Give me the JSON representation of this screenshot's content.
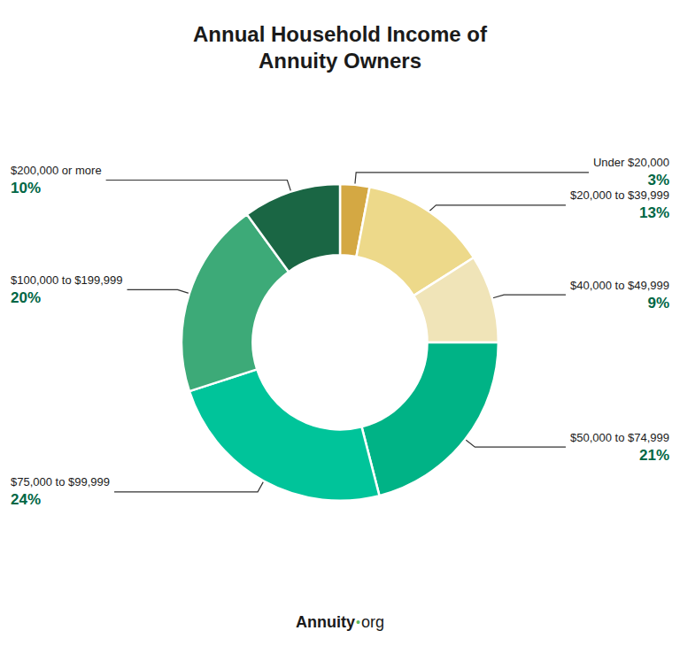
{
  "chart_data": {
    "type": "pie",
    "title": "Annual Household Income of\nAnnuity Owners",
    "categories": [
      "Under $20,000",
      "$20,000 to $39,999",
      "$40,000 to $49,999",
      "$50,000 to $74,999",
      "$75,000 to $99,999",
      "$100,000 to $199,999",
      "$200,000 or more"
    ],
    "values": [
      3,
      13,
      9,
      21,
      24,
      20,
      10
    ],
    "value_labels": [
      "3%",
      "13%",
      "9%",
      "21%",
      "24%",
      "20%",
      "10%"
    ],
    "colors": [
      "#D4A843",
      "#EDD98A",
      "#F0E4B8",
      "#00B386",
      "#00C49A",
      "#3DAA78",
      "#1A6644"
    ],
    "data_labels": true,
    "legend": false,
    "annotations": [
      "Annuity",
      "•",
      "org"
    ]
  }
}
